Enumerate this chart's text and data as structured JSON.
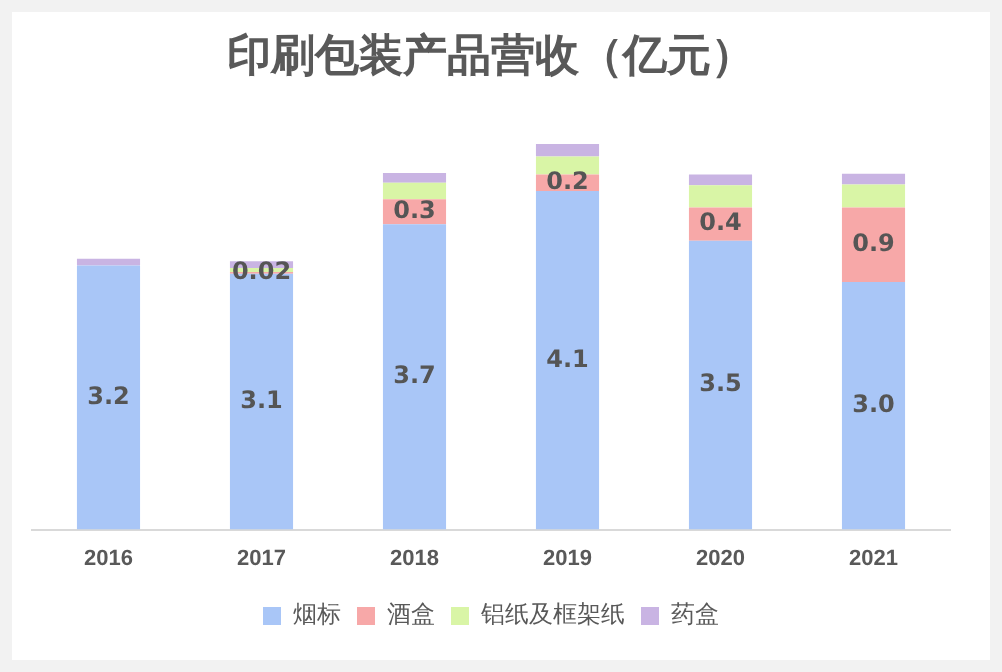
{
  "chart_data": {
    "type": "bar",
    "title": "印刷包装产品营收（亿元）",
    "categories": [
      "2016",
      "2017",
      "2018",
      "2019",
      "2020",
      "2021"
    ],
    "stacked": true,
    "legend": "bottom",
    "grid": false,
    "series": [
      {
        "name": "烟标",
        "color": "#a9c6f7",
        "values": [
          3.2,
          3.1,
          3.7,
          4.1,
          3.5,
          3.0
        ],
        "value_labels": [
          "3.2",
          "3.1",
          "3.7",
          "4.1",
          "3.5",
          "3.0"
        ]
      },
      {
        "name": "酒盒",
        "color": "#f7a8a8",
        "values": [
          0,
          0.02,
          0.3,
          0.2,
          0.4,
          0.9
        ],
        "value_labels": [
          null,
          "0.02",
          "0.3",
          "0.2",
          "0.4",
          "0.9"
        ]
      },
      {
        "name": "铝纸及框架纸",
        "color": "#d9f5a6",
        "values": [
          0,
          0.05,
          0.2,
          0.22,
          0.27,
          0.28
        ]
      },
      {
        "name": "药盒",
        "color": "#c9b4e3",
        "values": [
          0.08,
          0.08,
          0.12,
          0.15,
          0.13,
          0.13
        ]
      }
    ]
  }
}
